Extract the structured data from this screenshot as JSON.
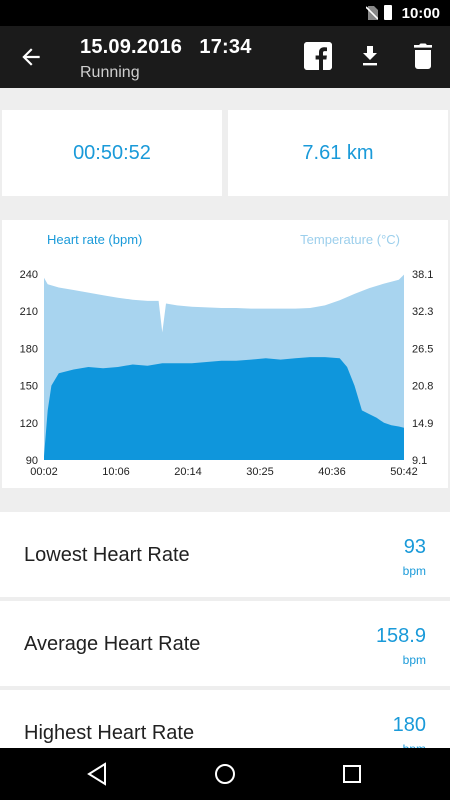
{
  "status": {
    "time": "10:00"
  },
  "header": {
    "date": "15.09.2016",
    "time": "17:34",
    "activity": "Running"
  },
  "summary": {
    "duration": "00:50:52",
    "distance": "7.61 km"
  },
  "chart_data": {
    "type": "area",
    "legend": {
      "heart_rate": "Heart rate (bpm)",
      "temperature": "Temperature (°C)"
    },
    "x_ticks": [
      "00:02",
      "10:06",
      "20:14",
      "30:25",
      "40:36",
      "50:42"
    ],
    "y_left_ticks": [
      "240",
      "210",
      "180",
      "150",
      "120",
      "90"
    ],
    "y_right_ticks": [
      "38.1",
      "32.3",
      "26.5",
      "20.8",
      "14.9",
      "9.1"
    ],
    "y_left_range": [
      90,
      240
    ],
    "y_right_range": [
      9.1,
      38.1
    ],
    "x_range_min": [
      2,
      50.7
    ],
    "series": [
      {
        "name": "Heart rate (bpm)",
        "color": "#0f96dc",
        "x": [
          2,
          2.5,
          3,
          4,
          6,
          8,
          10,
          12,
          14,
          16,
          18,
          20,
          22,
          24,
          26,
          28,
          30,
          32,
          34,
          36,
          38,
          40,
          42,
          43,
          44,
          45,
          46,
          47,
          48,
          49,
          50,
          50.7
        ],
        "values": [
          93,
          130,
          150,
          160,
          163,
          165,
          164,
          165,
          167,
          166,
          168,
          168,
          168,
          169,
          170,
          170,
          171,
          172,
          171,
          172,
          173,
          173,
          172,
          165,
          150,
          130,
          127,
          124,
          120,
          118,
          117,
          116
        ]
      },
      {
        "name": "Temperature (°C)",
        "color": "#a8d4ef",
        "x": [
          2,
          2.5,
          4,
          6,
          8,
          10,
          12,
          14,
          16,
          17.5,
          18,
          18.5,
          20,
          22,
          24,
          26,
          28,
          30,
          32,
          34,
          36,
          38,
          40,
          42,
          44,
          46,
          48,
          50,
          50.7
        ],
        "values": [
          37.5,
          36.5,
          36.0,
          35.6,
          35.2,
          34.8,
          34.4,
          34.1,
          33.9,
          33.9,
          29.0,
          33.5,
          33.2,
          33.0,
          32.9,
          32.8,
          32.8,
          32.7,
          32.7,
          32.7,
          32.7,
          32.8,
          33.2,
          34.0,
          35.0,
          35.9,
          36.6,
          37.2,
          38.0
        ]
      }
    ]
  },
  "metrics": [
    {
      "label": "Lowest Heart Rate",
      "value": "93",
      "unit": "bpm"
    },
    {
      "label": "Average Heart Rate",
      "value": "158.9",
      "unit": "bpm"
    },
    {
      "label": "Highest Heart Rate",
      "value": "180",
      "unit": "bpm"
    }
  ],
  "colors": {
    "accent": "#1a9ad9",
    "heart_rate": "#0f96dc",
    "temperature": "#a8d4ef",
    "app_bar": "#1b1b1b"
  },
  "icons": {
    "back": "arrow-left-icon",
    "share": "facebook-icon",
    "download": "download-icon",
    "delete": "trash-icon"
  }
}
